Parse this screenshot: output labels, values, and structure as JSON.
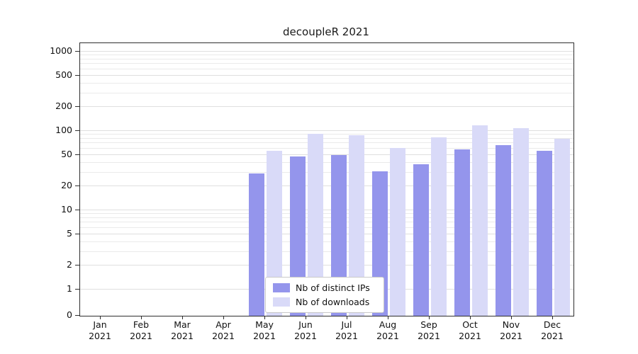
{
  "chart_data": {
    "type": "bar",
    "title": "decoupleR 2021",
    "scale": "symlog",
    "grid": true,
    "legend_position": "lower center-left inside plot",
    "categories": [
      "Jan",
      "Feb",
      "Mar",
      "Apr",
      "May",
      "Jun",
      "Jul",
      "Aug",
      "Sep",
      "Oct",
      "Nov",
      "Dec"
    ],
    "year": "2021",
    "yticks": [
      0,
      1,
      2,
      5,
      10,
      20,
      50,
      100,
      200,
      500,
      1000
    ],
    "ylim": [
      0,
      1200
    ],
    "xlabel": "",
    "ylabel": "",
    "series": [
      {
        "name": "Nb of distinct IPs",
        "color": "#9495ec",
        "values": [
          0,
          0,
          0,
          0,
          29,
          48,
          50,
          31,
          38,
          59,
          66,
          56
        ]
      },
      {
        "name": "Nb of downloads",
        "color": "#d9daf8",
        "values": [
          0,
          0,
          0,
          0,
          56,
          93,
          88,
          61,
          83,
          118,
          108,
          79
        ]
      }
    ]
  }
}
